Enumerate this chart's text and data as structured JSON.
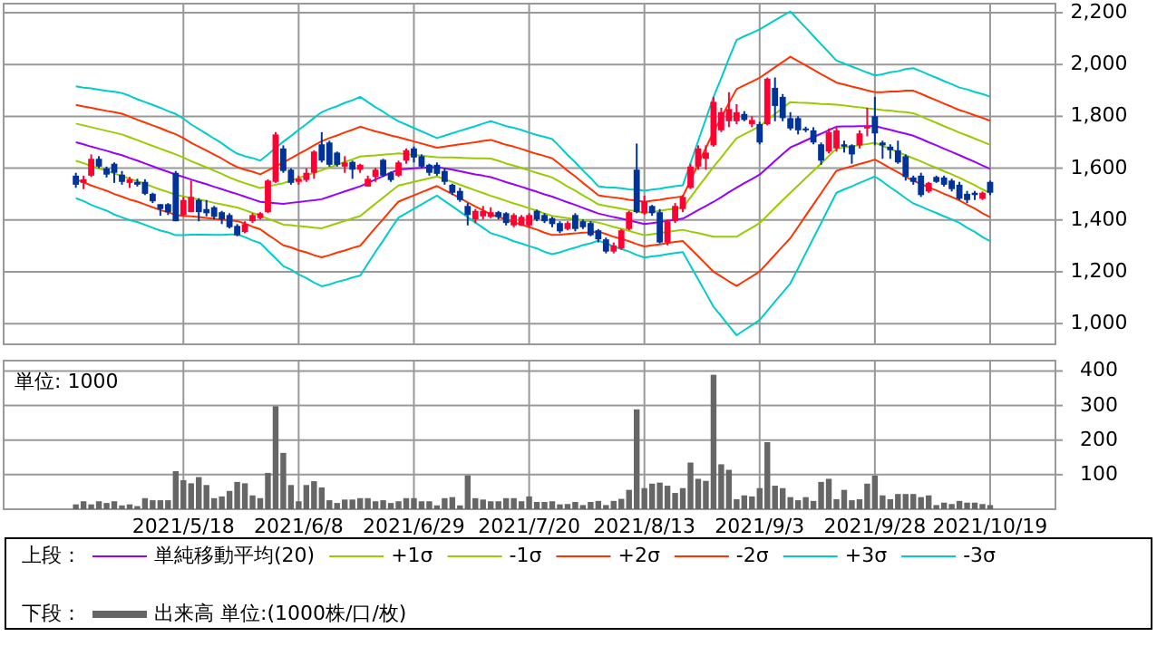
{
  "chart_data": [
    {
      "type": "candlestick",
      "categories": [
        null,
        null,
        null,
        null,
        null,
        null,
        null,
        null,
        null,
        null,
        null,
        null,
        null,
        null,
        "2021/5/18",
        null,
        null,
        null,
        null,
        null,
        null,
        null,
        null,
        null,
        null,
        null,
        null,
        null,
        null,
        "2021/6/8",
        null,
        null,
        null,
        null,
        null,
        null,
        null,
        null,
        null,
        null,
        null,
        null,
        null,
        null,
        "2021/6/29",
        null,
        null,
        null,
        null,
        null,
        null,
        null,
        null,
        null,
        null,
        null,
        null,
        null,
        null,
        "2021/7/20",
        null,
        null,
        null,
        null,
        null,
        null,
        null,
        null,
        null,
        null,
        null,
        null,
        null,
        null,
        "2021/8/13",
        null,
        null,
        null,
        null,
        null,
        null,
        null,
        null,
        null,
        null,
        null,
        null,
        null,
        null,
        "2021/9/3",
        null,
        null,
        null,
        null,
        null,
        null,
        null,
        null,
        null,
        null,
        null,
        null,
        null,
        null,
        "2021/9/28",
        null,
        null,
        null,
        null,
        null,
        null,
        null,
        null,
        null,
        null,
        null,
        null,
        null,
        null,
        "2021/10/19"
      ],
      "ohlc": [
        [
          1571,
          1582,
          1524,
          1536
        ],
        [
          1543,
          1571,
          1519,
          1557
        ],
        [
          1571,
          1653,
          1566,
          1636
        ],
        [
          1636,
          1646,
          1599,
          1606
        ],
        [
          1599,
          1606,
          1564,
          1575
        ],
        [
          1617,
          1622,
          1543,
          1582
        ],
        [
          1575,
          1589,
          1536,
          1547
        ],
        [
          1543,
          1566,
          1524,
          1557
        ],
        [
          1547,
          1559,
          1529,
          1536
        ],
        [
          1547,
          1557,
          1496,
          1501
        ],
        [
          1501,
          1505,
          1465,
          1472
        ],
        [
          1461,
          1461,
          1416,
          1442
        ],
        [
          1461,
          1465,
          1419,
          1430
        ],
        [
          1582,
          1589,
          1395,
          1395
        ],
        [
          1419,
          1489,
          1414,
          1477
        ],
        [
          1430,
          1552,
          1430,
          1489
        ],
        [
          1477,
          1484,
          1395,
          1430
        ],
        [
          1442,
          1477,
          1414,
          1426
        ],
        [
          1449,
          1454,
          1402,
          1412
        ],
        [
          1430,
          1435,
          1384,
          1402
        ],
        [
          1419,
          1426,
          1367,
          1372
        ],
        [
          1377,
          1384,
          1337,
          1341
        ],
        [
          1353,
          1395,
          1349,
          1384
        ],
        [
          1395,
          1426,
          1388,
          1419
        ],
        [
          1407,
          1430,
          1402,
          1426
        ],
        [
          1430,
          1557,
          1426,
          1552
        ],
        [
          1547,
          1739,
          1543,
          1730
        ],
        [
          1676,
          1688,
          1582,
          1589
        ],
        [
          1594,
          1599,
          1536,
          1543
        ],
        [
          1547,
          1571,
          1536,
          1559
        ],
        [
          1554,
          1599,
          1547,
          1582
        ],
        [
          1582,
          1669,
          1559,
          1664
        ],
        [
          1692,
          1739,
          1622,
          1629
        ],
        [
          1699,
          1706,
          1606,
          1613
        ],
        [
          1660,
          1664,
          1606,
          1613
        ],
        [
          1606,
          1646,
          1582,
          1622
        ],
        [
          1624,
          1629,
          1559,
          1594
        ],
        [
          1594,
          1617,
          1582,
          1613
        ],
        [
          1529,
          1571,
          1529,
          1559
        ],
        [
          1566,
          1601,
          1547,
          1594
        ],
        [
          1632,
          1636,
          1566,
          1571
        ],
        [
          1582,
          1587,
          1547,
          1554
        ],
        [
          1571,
          1629,
          1566,
          1622
        ],
        [
          1629,
          1676,
          1617,
          1669
        ],
        [
          1676,
          1683,
          1622,
          1641
        ],
        [
          1646,
          1653,
          1599,
          1606
        ],
        [
          1613,
          1617,
          1571,
          1582
        ],
        [
          1613,
          1622,
          1571,
          1578
        ],
        [
          1589,
          1599,
          1536,
          1547
        ],
        [
          1536,
          1540,
          1496,
          1505
        ],
        [
          1512,
          1524,
          1470,
          1477
        ],
        [
          1454,
          1465,
          1379,
          1419
        ],
        [
          1402,
          1442,
          1388,
          1435
        ],
        [
          1414,
          1454,
          1402,
          1435
        ],
        [
          1412,
          1449,
          1407,
          1430
        ],
        [
          1430,
          1435,
          1402,
          1412
        ],
        [
          1426,
          1430,
          1379,
          1388
        ],
        [
          1379,
          1426,
          1372,
          1419
        ],
        [
          1379,
          1419,
          1377,
          1412
        ],
        [
          1379,
          1426,
          1372,
          1419
        ],
        [
          1435,
          1440,
          1395,
          1402
        ],
        [
          1419,
          1426,
          1388,
          1395
        ],
        [
          1407,
          1412,
          1372,
          1384
        ],
        [
          1388,
          1395,
          1349,
          1356
        ],
        [
          1365,
          1395,
          1360,
          1388
        ],
        [
          1419,
          1426,
          1356,
          1365
        ],
        [
          1395,
          1402,
          1365,
          1372
        ],
        [
          1388,
          1395,
          1337,
          1341
        ],
        [
          1360,
          1365,
          1313,
          1325
        ],
        [
          1325,
          1332,
          1271,
          1278
        ],
        [
          1278,
          1313,
          1271,
          1302
        ],
        [
          1290,
          1365,
          1285,
          1360
        ],
        [
          1365,
          1435,
          1360,
          1430
        ],
        [
          1594,
          1695,
          1426,
          1430
        ],
        [
          1426,
          1494,
          1420,
          1472
        ],
        [
          1454,
          1458,
          1416,
          1426
        ],
        [
          1430,
          1442,
          1309,
          1313
        ],
        [
          1313,
          1402,
          1302,
          1395
        ],
        [
          1395,
          1465,
          1388,
          1454
        ],
        [
          1442,
          1496,
          1430,
          1489
        ],
        [
          1524,
          1617,
          1519,
          1606
        ],
        [
          1606,
          1688,
          1594,
          1676
        ],
        [
          1636,
          1688,
          1594,
          1660
        ],
        [
          1688,
          1875,
          1683,
          1856
        ],
        [
          1746,
          1833,
          1739,
          1816
        ],
        [
          1781,
          1893,
          1758,
          1828
        ],
        [
          1781,
          1847,
          1770,
          1816
        ],
        [
          1809,
          1820,
          1781,
          1786
        ],
        [
          1770,
          1800,
          1758,
          1786
        ],
        [
          1770,
          1779,
          1692,
          1699
        ],
        [
          1770,
          1950,
          1765,
          1945
        ],
        [
          1910,
          1950,
          1781,
          1840
        ],
        [
          1875,
          1886,
          1781,
          1793
        ],
        [
          1793,
          1816,
          1746,
          1753
        ],
        [
          1793,
          1800,
          1730,
          1746
        ],
        [
          1753,
          1760,
          1739,
          1746
        ],
        [
          1746,
          1758,
          1692,
          1699
        ],
        [
          1692,
          1699,
          1613,
          1629
        ],
        [
          1664,
          1753,
          1657,
          1739
        ],
        [
          1676,
          1758,
          1664,
          1746
        ],
        [
          1692,
          1706,
          1660,
          1683
        ],
        [
          1688,
          1692,
          1617,
          1653
        ],
        [
          1688,
          1746,
          1676,
          1734
        ],
        [
          1753,
          1833,
          1723,
          1763
        ],
        [
          1800,
          1875,
          1688,
          1734
        ],
        [
          1699,
          1706,
          1636,
          1688
        ],
        [
          1683,
          1692,
          1636,
          1669
        ],
        [
          1669,
          1706,
          1617,
          1622
        ],
        [
          1646,
          1653,
          1552,
          1566
        ],
        [
          1564,
          1571,
          1536,
          1547
        ],
        [
          1571,
          1582,
          1489,
          1496
        ],
        [
          1510,
          1547,
          1505,
          1543
        ],
        [
          1566,
          1571,
          1543,
          1547
        ],
        [
          1564,
          1571,
          1529,
          1536
        ],
        [
          1552,
          1559,
          1510,
          1519
        ],
        [
          1536,
          1547,
          1477,
          1482
        ],
        [
          1501,
          1512,
          1465,
          1477
        ],
        [
          1505,
          1512,
          1477,
          1496
        ],
        [
          1482,
          1510,
          1477,
          1505
        ],
        [
          1547,
          1552,
          1496,
          1505
        ]
      ],
      "colors": [
        "#003399",
        "#ff0033",
        "#ff0033",
        "#003399",
        "#003399",
        "#003399",
        "#003399",
        "#ff0033",
        "#003399",
        "#003399",
        "#003399",
        "#003399",
        "#003399",
        "#003399",
        "#ff0033",
        "#ff0033",
        "#003399",
        "#003399",
        "#003399",
        "#003399",
        "#003399",
        "#003399",
        "#ff0033",
        "#ff0033",
        "#ff0033",
        "#ff0033",
        "#ff0033",
        "#003399",
        "#003399",
        "#ff0033",
        "#ff0033",
        "#ff0033",
        "#003399",
        "#003399",
        "#003399",
        "#ff0033",
        "#003399",
        "#ff0033",
        "#ff0033",
        "#ff0033",
        "#003399",
        "#003399",
        "#ff0033",
        "#ff0033",
        "#003399",
        "#003399",
        "#003399",
        "#003399",
        "#003399",
        "#003399",
        "#003399",
        "#003399",
        "#ff0033",
        "#ff0033",
        "#ff0033",
        "#003399",
        "#003399",
        "#ff0033",
        "#ff0033",
        "#ff0033",
        "#003399",
        "#003399",
        "#003399",
        "#003399",
        "#ff0033",
        "#003399",
        "#003399",
        "#003399",
        "#003399",
        "#003399",
        "#ff0033",
        "#ff0033",
        "#ff0033",
        "#003399",
        "#ff0033",
        "#003399",
        "#003399",
        "#ff0033",
        "#ff0033",
        "#ff0033",
        "#ff0033",
        "#ff0033",
        "#ff0033",
        "#ff0033",
        "#ff0033",
        "#ff0033",
        "#ff0033",
        "#003399",
        "#ff0033",
        "#003399",
        "#ff0033",
        "#003399",
        "#003399",
        "#003399",
        "#003399",
        "#003399",
        "#003399",
        "#003399",
        "#ff0033",
        "#ff0033",
        "#003399",
        "#003399",
        "#ff0033",
        "#ff0033",
        "#003399",
        "#003399",
        "#003399",
        "#003399",
        "#003399",
        "#003399",
        "#003399",
        "#ff0033",
        "#003399",
        "#003399",
        "#003399",
        "#003399",
        "#003399",
        "#003399",
        "#ff0033",
        "#003399"
      ],
      "series": [
        {
          "name": "単純移動平均(20)",
          "type": "line",
          "color": "#9900ff",
          "values": [
            1700,
            1692,
            1683,
            1675,
            1667,
            1658,
            1650,
            1639,
            1629,
            1618,
            1607,
            1596,
            1586,
            1575,
            1566,
            1556,
            1547,
            1538,
            1528,
            1519,
            1509,
            1500,
            1490,
            1480,
            1470,
            1467,
            1465,
            1462,
            1466,
            1469,
            1473,
            1476,
            1480,
            1490,
            1500,
            1510,
            1520,
            1530,
            1543,
            1556,
            1569,
            1582,
            1595,
            1597,
            1599,
            1601,
            1603,
            1605,
            1599,
            1594,
            1588,
            1582,
            1576,
            1571,
            1565,
            1556,
            1546,
            1537,
            1528,
            1518,
            1509,
            1499,
            1490,
            1479,
            1468,
            1458,
            1447,
            1436,
            1425,
            1418,
            1411,
            1405,
            1398,
            1391,
            1384,
            1388,
            1392,
            1397,
            1401,
            1405,
            1421,
            1438,
            1454,
            1470,
            1488,
            1507,
            1525,
            1542,
            1558,
            1575,
            1601,
            1628,
            1654,
            1680,
            1693,
            1707,
            1720,
            1733,
            1747,
            1760,
            1761,
            1761,
            1762,
            1762,
            1763,
            1755,
            1748,
            1740,
            1733,
            1725,
            1713,
            1700,
            1688,
            1675,
            1663,
            1650,
            1637,
            1624,
            1610,
            1597
          ]
        },
        {
          "name": "+1σ",
          "type": "line",
          "color": "#99cc00",
          "values": [
            1772,
            1765,
            1758,
            1751,
            1744,
            1737,
            1730,
            1719,
            1708,
            1697,
            1686,
            1675,
            1664,
            1653,
            1641,
            1627,
            1615,
            1603,
            1590,
            1578,
            1564,
            1552,
            1542,
            1533,
            1523,
            1529,
            1536,
            1542,
            1552,
            1562,
            1572,
            1582,
            1592,
            1603,
            1613,
            1624,
            1634,
            1645,
            1647,
            1649,
            1652,
            1654,
            1657,
            1654,
            1651,
            1648,
            1645,
            1642,
            1641,
            1641,
            1640,
            1639,
            1638,
            1638,
            1637,
            1628,
            1618,
            1610,
            1601,
            1591,
            1582,
            1573,
            1564,
            1547,
            1529,
            1513,
            1495,
            1478,
            1460,
            1454,
            1449,
            1444,
            1438,
            1433,
            1427,
            1431,
            1435,
            1440,
            1444,
            1448,
            1487,
            1527,
            1566,
            1605,
            1641,
            1679,
            1715,
            1731,
            1746,
            1762,
            1785,
            1809,
            1832,
            1855,
            1853,
            1852,
            1850,
            1848,
            1847,
            1845,
            1842,
            1838,
            1835,
            1831,
            1828,
            1824,
            1822,
            1818,
            1816,
            1812,
            1800,
            1787,
            1775,
            1762,
            1750,
            1737,
            1726,
            1714,
            1702,
            1690
          ]
        },
        {
          "name": "-1σ",
          "type": "line",
          "color": "#99cc00",
          "values": [
            1628,
            1619,
            1608,
            1599,
            1590,
            1579,
            1570,
            1559,
            1550,
            1539,
            1528,
            1517,
            1508,
            1497,
            1491,
            1485,
            1479,
            1473,
            1466,
            1460,
            1454,
            1448,
            1438,
            1427,
            1417,
            1405,
            1394,
            1382,
            1380,
            1376,
            1374,
            1370,
            1368,
            1377,
            1387,
            1396,
            1406,
            1415,
            1439,
            1463,
            1486,
            1510,
            1533,
            1540,
            1547,
            1554,
            1561,
            1568,
            1557,
            1547,
            1536,
            1525,
            1514,
            1504,
            1493,
            1484,
            1474,
            1464,
            1455,
            1445,
            1436,
            1425,
            1416,
            1411,
            1407,
            1403,
            1399,
            1394,
            1390,
            1382,
            1373,
            1366,
            1358,
            1349,
            1341,
            1345,
            1349,
            1354,
            1358,
            1362,
            1355,
            1349,
            1342,
            1335,
            1335,
            1335,
            1335,
            1353,
            1370,
            1388,
            1417,
            1447,
            1476,
            1505,
            1533,
            1562,
            1590,
            1618,
            1647,
            1675,
            1680,
            1684,
            1689,
            1693,
            1698,
            1686,
            1674,
            1662,
            1650,
            1638,
            1626,
            1613,
            1601,
            1588,
            1576,
            1563,
            1548,
            1534,
            1518,
            1504
          ]
        },
        {
          "name": "+2σ",
          "type": "line",
          "color": "#ff3300",
          "values": [
            1844,
            1838,
            1833,
            1827,
            1821,
            1816,
            1810,
            1799,
            1787,
            1776,
            1765,
            1754,
            1742,
            1731,
            1716,
            1698,
            1683,
            1668,
            1652,
            1637,
            1619,
            1604,
            1594,
            1586,
            1576,
            1591,
            1607,
            1622,
            1638,
            1655,
            1671,
            1688,
            1704,
            1716,
            1726,
            1738,
            1748,
            1760,
            1751,
            1742,
            1735,
            1726,
            1719,
            1711,
            1703,
            1695,
            1687,
            1679,
            1683,
            1688,
            1692,
            1696,
            1700,
            1705,
            1709,
            1700,
            1690,
            1683,
            1674,
            1664,
            1655,
            1647,
            1638,
            1615,
            1590,
            1568,
            1543,
            1520,
            1495,
            1490,
            1487,
            1483,
            1478,
            1475,
            1470,
            1474,
            1478,
            1483,
            1487,
            1491,
            1553,
            1616,
            1678,
            1740,
            1794,
            1851,
            1905,
            1920,
            1934,
            1949,
            1969,
            1990,
            2010,
            2030,
            2013,
            1997,
            1980,
            1963,
            1947,
            1930,
            1923,
            1915,
            1908,
            1900,
            1893,
            1893,
            1896,
            1896,
            1899,
            1899,
            1887,
            1874,
            1862,
            1849,
            1837,
            1824,
            1815,
            1804,
            1794,
            1783
          ]
        },
        {
          "name": "-2σ",
          "type": "line",
          "color": "#ff3300",
          "values": [
            1556,
            1546,
            1533,
            1523,
            1513,
            1500,
            1490,
            1479,
            1471,
            1460,
            1449,
            1438,
            1430,
            1419,
            1416,
            1414,
            1411,
            1408,
            1404,
            1401,
            1399,
            1396,
            1386,
            1374,
            1364,
            1343,
            1323,
            1302,
            1294,
            1283,
            1275,
            1264,
            1256,
            1264,
            1274,
            1282,
            1292,
            1300,
            1335,
            1370,
            1403,
            1438,
            1471,
            1483,
            1495,
            1507,
            1519,
            1531,
            1515,
            1500,
            1484,
            1468,
            1452,
            1437,
            1421,
            1412,
            1402,
            1391,
            1382,
            1372,
            1363,
            1351,
            1342,
            1343,
            1346,
            1348,
            1351,
            1352,
            1355,
            1346,
            1335,
            1327,
            1318,
            1307,
            1298,
            1302,
            1306,
            1311,
            1315,
            1319,
            1289,
            1260,
            1230,
            1200,
            1182,
            1163,
            1145,
            1164,
            1182,
            1201,
            1233,
            1266,
            1298,
            1330,
            1373,
            1417,
            1460,
            1503,
            1547,
            1590,
            1599,
            1607,
            1616,
            1624,
            1633,
            1617,
            1600,
            1584,
            1567,
            1551,
            1539,
            1526,
            1514,
            1501,
            1489,
            1476,
            1459,
            1444,
            1426,
            1411
          ]
        },
        {
          "name": "+3σ",
          "type": "line",
          "color": "#00cccc",
          "values": [
            1916,
            1911,
            1908,
            1903,
            1898,
            1895,
            1890,
            1879,
            1866,
            1855,
            1844,
            1833,
            1820,
            1809,
            1791,
            1769,
            1751,
            1733,
            1714,
            1696,
            1674,
            1656,
            1646,
            1639,
            1629,
            1653,
            1678,
            1702,
            1724,
            1748,
            1770,
            1794,
            1816,
            1829,
            1839,
            1852,
            1862,
            1875,
            1855,
            1835,
            1818,
            1798,
            1781,
            1768,
            1755,
            1742,
            1729,
            1716,
            1725,
            1735,
            1744,
            1753,
            1762,
            1772,
            1781,
            1772,
            1762,
            1756,
            1747,
            1737,
            1728,
            1721,
            1712,
            1683,
            1651,
            1623,
            1591,
            1562,
            1530,
            1526,
            1525,
            1522,
            1518,
            1517,
            1513,
            1517,
            1521,
            1526,
            1530,
            1534,
            1619,
            1705,
            1790,
            1875,
            1947,
            2023,
            2095,
            2109,
            2122,
            2136,
            2153,
            2171,
            2188,
            2205,
            2173,
            2142,
            2110,
            2078,
            2047,
            2015,
            2004,
            1992,
            1981,
            1969,
            1958,
            1962,
            1970,
            1974,
            1982,
            1986,
            1974,
            1961,
            1949,
            1936,
            1924,
            1911,
            1904,
            1894,
            1886,
            1876
          ]
        },
        {
          "name": "-3σ",
          "type": "line",
          "color": "#00cccc",
          "values": [
            1484,
            1473,
            1458,
            1447,
            1436,
            1421,
            1410,
            1399,
            1392,
            1381,
            1370,
            1359,
            1352,
            1341,
            1341,
            1343,
            1343,
            1343,
            1342,
            1342,
            1344,
            1344,
            1334,
            1321,
            1311,
            1281,
            1252,
            1222,
            1208,
            1190,
            1176,
            1158,
            1144,
            1151,
            1161,
            1168,
            1178,
            1185,
            1231,
            1277,
            1320,
            1366,
            1409,
            1426,
            1443,
            1460,
            1477,
            1494,
            1473,
            1453,
            1432,
            1411,
            1390,
            1370,
            1349,
            1340,
            1330,
            1318,
            1309,
            1299,
            1290,
            1277,
            1268,
            1275,
            1285,
            1293,
            1303,
            1310,
            1320,
            1310,
            1297,
            1288,
            1278,
            1265,
            1255,
            1259,
            1263,
            1268,
            1272,
            1276,
            1223,
            1171,
            1118,
            1065,
            1029,
            991,
            955,
            975,
            994,
            1014,
            1049,
            1085,
            1120,
            1155,
            1213,
            1272,
            1330,
            1388,
            1447,
            1505,
            1518,
            1530,
            1543,
            1555,
            1568,
            1548,
            1526,
            1506,
            1484,
            1464,
            1452,
            1439,
            1427,
            1414,
            1402,
            1389,
            1370,
            1354,
            1334,
            1318
          ]
        }
      ],
      "ylim": [
        920,
        2235
      ],
      "yticks": [
        {
          "value": 1000,
          "label": "1,000"
        },
        {
          "value": 1200,
          "label": "1,200"
        },
        {
          "value": 1400,
          "label": "1,400"
        },
        {
          "value": 1600,
          "label": "1,600"
        },
        {
          "value": 1800,
          "label": "1,800"
        },
        {
          "value": 2000,
          "label": "2,000"
        },
        {
          "value": 2200,
          "label": "2,200"
        }
      ],
      "grid": true,
      "tick_labels": "y",
      "legend": "bottom",
      "annotations": [
        "上段："
      ]
    },
    {
      "type": "bar",
      "categories": [
        null,
        null,
        null,
        null,
        null,
        null,
        null,
        null,
        null,
        null,
        null,
        null,
        null,
        null,
        "2021/5/18",
        null,
        null,
        null,
        null,
        null,
        null,
        null,
        null,
        null,
        null,
        null,
        null,
        null,
        null,
        "2021/6/8",
        null,
        null,
        null,
        null,
        null,
        null,
        null,
        null,
        null,
        null,
        null,
        null,
        null,
        null,
        "2021/6/29",
        null,
        null,
        null,
        null,
        null,
        null,
        null,
        null,
        null,
        null,
        null,
        null,
        null,
        null,
        "2021/7/20",
        null,
        null,
        null,
        null,
        null,
        null,
        null,
        null,
        null,
        null,
        null,
        null,
        null,
        null,
        "2021/8/13",
        null,
        null,
        null,
        null,
        null,
        null,
        null,
        null,
        null,
        null,
        null,
        null,
        null,
        null,
        "2021/9/3",
        null,
        null,
        null,
        null,
        null,
        null,
        null,
        null,
        null,
        null,
        null,
        null,
        null,
        null,
        "2021/9/28",
        null,
        null,
        null,
        null,
        null,
        null,
        null,
        null,
        null,
        null,
        null,
        null,
        null,
        null,
        "2021/10/19"
      ],
      "series": [
        {
          "name": "出来高 単位:(1000株/口/枚)",
          "color": "#666666",
          "values": [
            14,
            23,
            14,
            23,
            18,
            23,
            11,
            14,
            9,
            32,
            26,
            26,
            26,
            110,
            84,
            75,
            93,
            70,
            32,
            37,
            53,
            79,
            75,
            40,
            32,
            105,
            298,
            163,
            70,
            23,
            70,
            81,
            63,
            26,
            18,
            28,
            28,
            32,
            32,
            23,
            26,
            18,
            23,
            32,
            32,
            23,
            23,
            11,
            32,
            35,
            11,
            98,
            32,
            28,
            23,
            23,
            32,
            32,
            23,
            37,
            21,
            21,
            23,
            14,
            15,
            21,
            12,
            21,
            24,
            12,
            24,
            30,
            56,
            289,
            61,
            74,
            77,
            68,
            47,
            61,
            135,
            88,
            82,
            389,
            130,
            114,
            29,
            40,
            37,
            61,
            194,
            68,
            61,
            35,
            26,
            35,
            24,
            79,
            88,
            29,
            56,
            26,
            29,
            74,
            97,
            40,
            29,
            44,
            44,
            44,
            35,
            40,
            12,
            19,
            15,
            24,
            19,
            19,
            15,
            12
          ]
        }
      ],
      "ylim": [
        0,
        430
      ],
      "yticks": [
        100,
        200,
        300,
        400
      ],
      "grid": true,
      "legend": "bottom",
      "annotations": [
        "単位: 1000",
        "下段："
      ]
    }
  ]
}
